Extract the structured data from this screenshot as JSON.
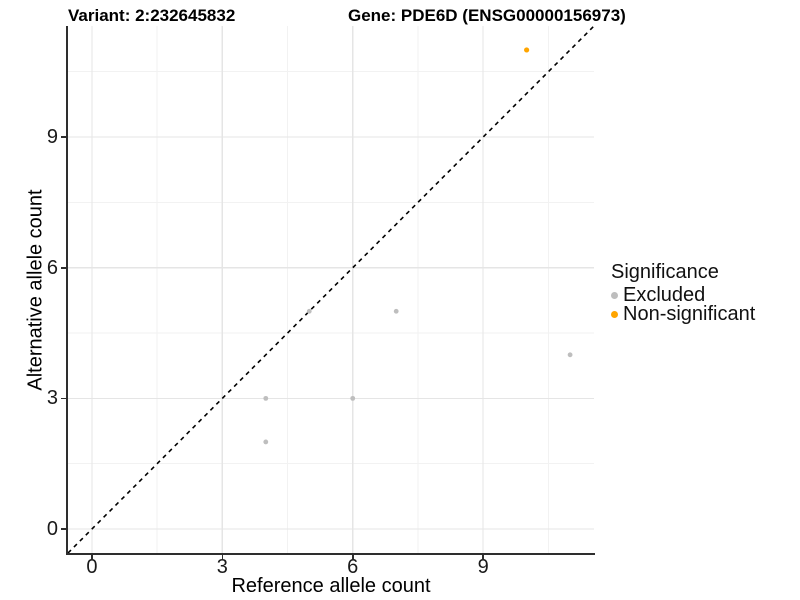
{
  "titles": {
    "variant": "Variant: 2:232645832",
    "gene": "Gene: PDE6D (ENSG00000156973)"
  },
  "chart_data": {
    "type": "scatter",
    "title_left": "Variant: 2:232645832",
    "title_right": "Gene: PDE6D (ENSG00000156973)",
    "xlabel": "Reference allele count",
    "ylabel": "Alternative allele count",
    "xlim": [
      -0.55,
      11.55
    ],
    "ylim": [
      -0.55,
      11.55
    ],
    "x_ticks": [
      0,
      3,
      6,
      9
    ],
    "y_ticks": [
      0,
      3,
      6,
      9
    ],
    "x_minor_gridlines": [
      1.5,
      4.5,
      7.5,
      10.5
    ],
    "y_minor_gridlines": [
      1.5,
      4.5,
      7.5,
      10.5
    ],
    "grid": true,
    "gridline_color_major": "#E5E5E5",
    "gridline_color_minor": "#F2F2F2",
    "reference_line": {
      "kind": "identity y=x",
      "style": "dashed",
      "color": "#000000",
      "from": [
        -0.55,
        -0.55
      ],
      "to": [
        11.55,
        11.55
      ]
    },
    "series": [
      {
        "name": "Excluded",
        "color": "#BEBEBE",
        "point_radius": 2.4,
        "points": [
          [
            4,
            2
          ],
          [
            4,
            3
          ],
          [
            5,
            5
          ],
          [
            6,
            3
          ],
          [
            7,
            5
          ],
          [
            11,
            4
          ]
        ]
      },
      {
        "name": "Non-significant",
        "color": "#FFA500",
        "point_radius": 2.6,
        "points": [
          [
            10,
            11
          ]
        ]
      }
    ],
    "legend": {
      "title": "Significance",
      "position": "right",
      "entries": [
        {
          "label": "Excluded",
          "color": "#BEBEBE"
        },
        {
          "label": "Non-significant",
          "color": "#FFA500"
        }
      ]
    }
  },
  "colors": {
    "background": "#FFFFFF",
    "axis_line": "#2E2E2E",
    "tick_text": "#1A1A1A",
    "excluded_point": "#BEBEBE",
    "non_significant_point": "#FFA500"
  }
}
